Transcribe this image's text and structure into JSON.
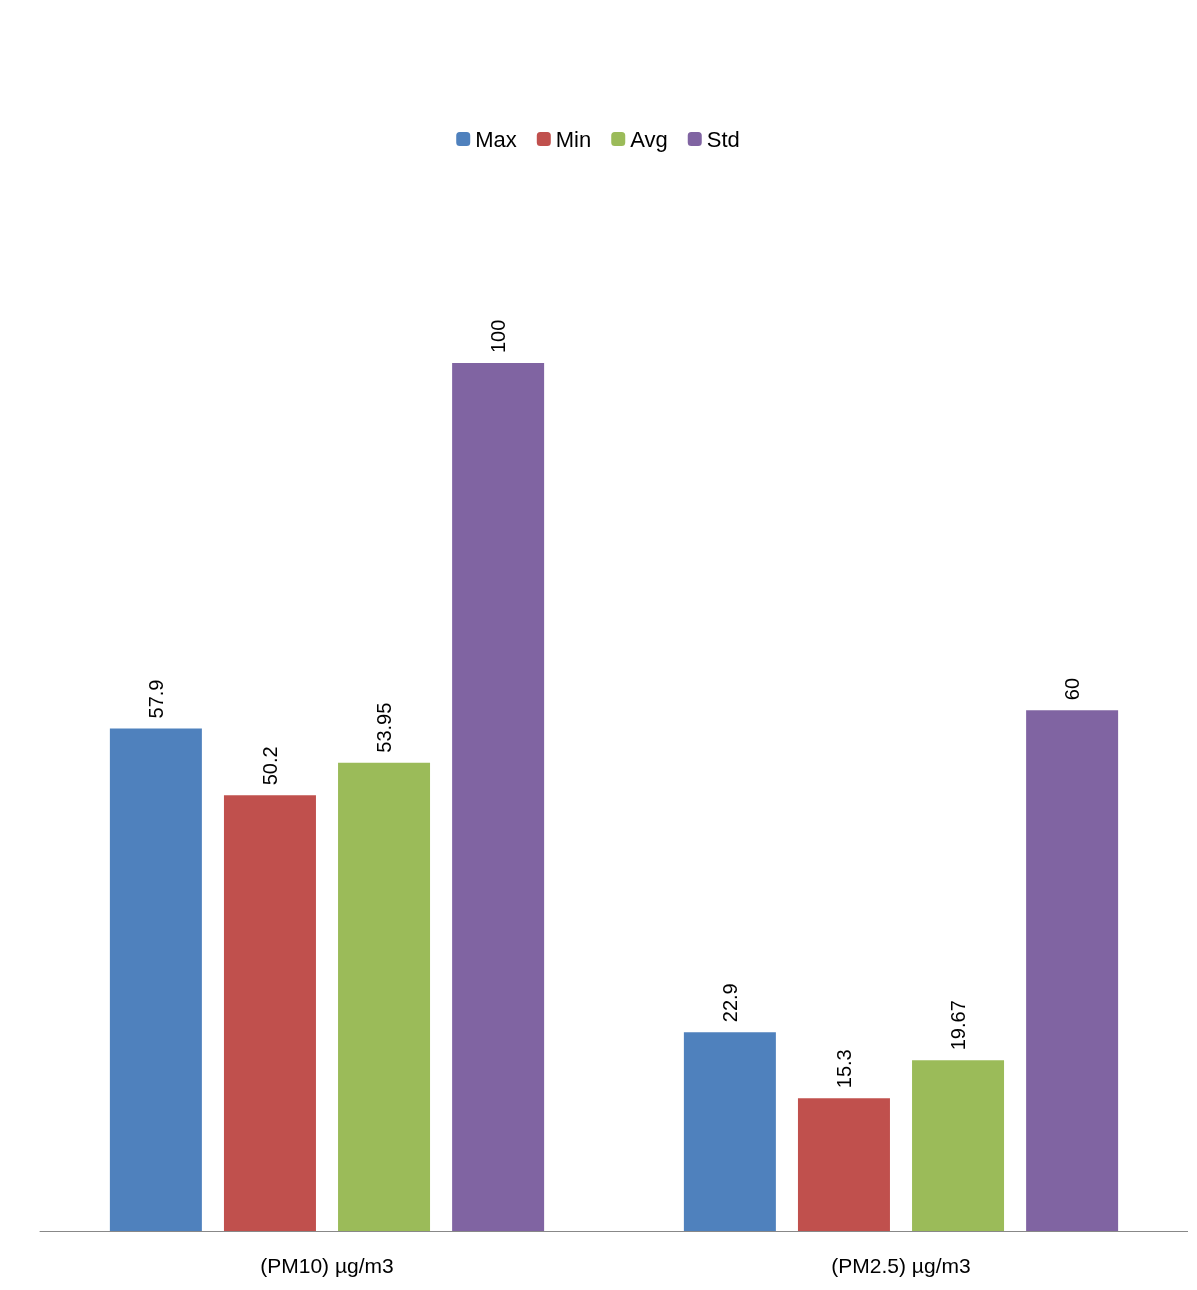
{
  "chart_data": {
    "type": "bar",
    "categories": [
      "(PM10) µg/m3",
      "(PM2.5) µg/m3"
    ],
    "series": [
      {
        "name": "Max",
        "color": "#4f81bd",
        "values": [
          57.9,
          22.9
        ]
      },
      {
        "name": "Min",
        "color": "#c0504d",
        "values": [
          50.2,
          15.3
        ]
      },
      {
        "name": "Avg",
        "color": "#9bbb59",
        "values": [
          53.95,
          19.67
        ]
      },
      {
        "name": "Std",
        "color": "#8064a2",
        "values": [
          100,
          60
        ]
      }
    ],
    "data_labels": true,
    "legend": "top"
  }
}
